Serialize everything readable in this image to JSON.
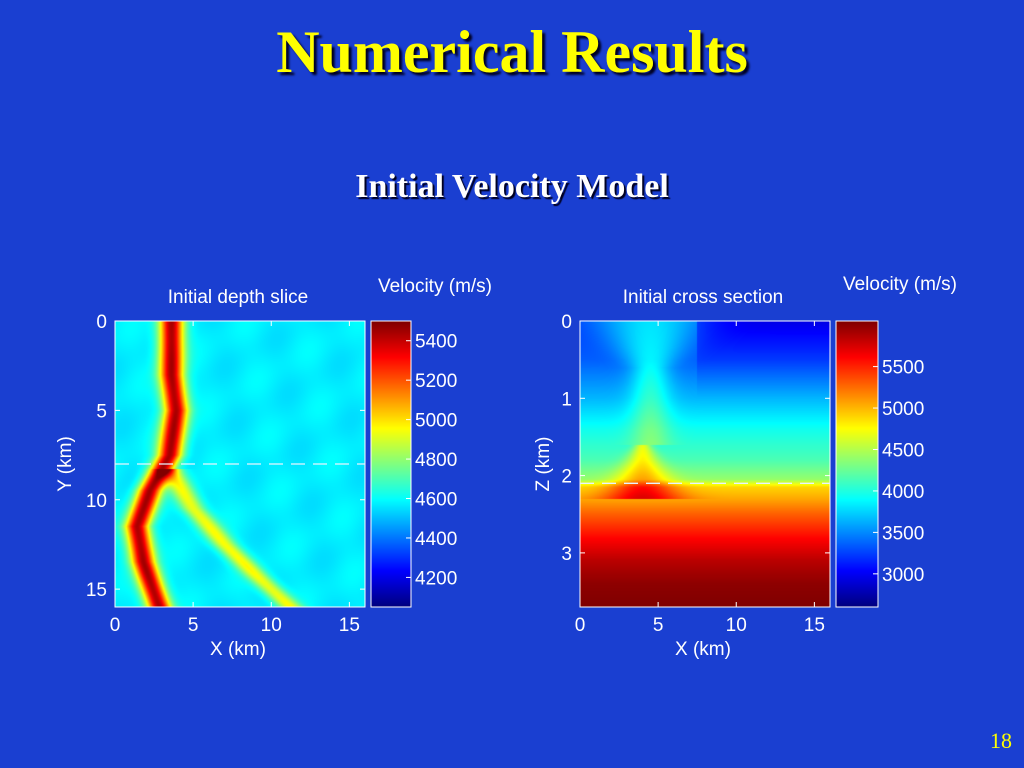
{
  "slide": {
    "title": "Numerical Results",
    "subtitle": "Initial Velocity Model",
    "page_number": "18"
  },
  "colors": {
    "background": "#1a3fd1",
    "title": "#ffff00",
    "text": "#ffffff",
    "colormap": "jet"
  },
  "chart_data": [
    {
      "type": "heatmap",
      "title": "Initial depth slice",
      "xlabel": "X (km)",
      "ylabel": "Y (km)",
      "xlim": [
        0,
        16
      ],
      "ylim": [
        0,
        16
      ],
      "y_reversed": true,
      "xticks": [
        "0",
        "5",
        "10",
        "15"
      ],
      "yticks": [
        "0",
        "5",
        "10",
        "15"
      ],
      "background_value": 4570,
      "ridges": [
        {
          "description_value": 5450,
          "points": [
            [
              3.6,
              0
            ],
            [
              3.6,
              3
            ],
            [
              3.9,
              5
            ],
            [
              3.5,
              7.5
            ],
            [
              2.2,
              9.5
            ],
            [
              1.4,
              11.5
            ],
            [
              1.8,
              13.5
            ],
            [
              2.8,
              16
            ]
          ]
        },
        {
          "description_value": 4950,
          "points": [
            [
              3.5,
              8.3
            ],
            [
              5.0,
              10.5
            ],
            [
              7.0,
              12.5
            ],
            [
              9.0,
              14.2
            ],
            [
              11.2,
              16
            ]
          ]
        }
      ],
      "slice_line_y": 8,
      "colorbar": {
        "label": "Velocity (m/s)",
        "min": 4050,
        "max": 5500,
        "ticks": [
          "5400",
          "5200",
          "5000",
          "4800",
          "4600",
          "4400",
          "4200"
        ]
      }
    },
    {
      "type": "heatmap",
      "title": "Initial cross section",
      "xlabel": "X (km)",
      "ylabel": "Z (km)",
      "xlim": [
        0,
        16
      ],
      "ylim": [
        0,
        3.7
      ],
      "y_reversed": true,
      "xticks": [
        "0",
        "5",
        "10",
        "15"
      ],
      "yticks": [
        "0",
        "1",
        "2",
        "3"
      ],
      "depth_profile": [
        [
          0,
          3200
        ],
        [
          0.5,
          3350
        ],
        [
          1.0,
          3650
        ],
        [
          1.4,
          3950
        ],
        [
          1.8,
          4150
        ],
        [
          2.05,
          4400
        ],
        [
          2.15,
          4900
        ],
        [
          2.3,
          5050
        ],
        [
          2.5,
          5300
        ],
        [
          2.8,
          5600
        ],
        [
          3.1,
          5850
        ],
        [
          3.4,
          6000
        ],
        [
          3.7,
          6050
        ]
      ],
      "anomalies": [
        {
          "x": 4.5,
          "z_top": 0,
          "z_bottom": 1.6,
          "amplitude": 600
        },
        {
          "x": 4.0,
          "z_top": 1.6,
          "z_bottom": 2.2,
          "amplitude": 700
        }
      ],
      "slice_line_z": 2.1,
      "colorbar": {
        "label": "Velocity (m/s)",
        "min": 2600,
        "max": 6050,
        "ticks": [
          "5500",
          "5000",
          "4500",
          "4000",
          "3500",
          "3000"
        ]
      }
    }
  ]
}
